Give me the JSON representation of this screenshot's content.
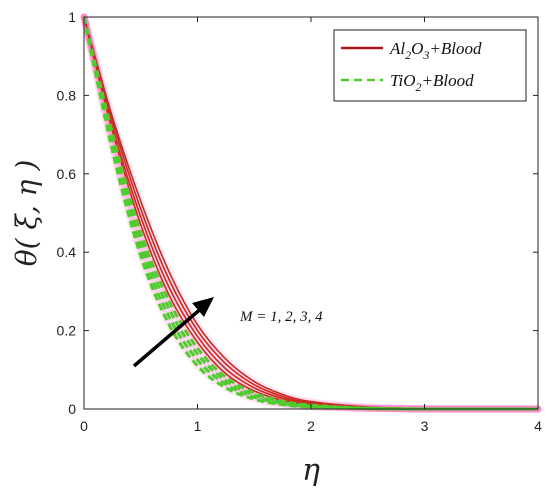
{
  "chart_data": {
    "type": "line",
    "xlabel": "η",
    "ylabel": "θ( ξ, η )",
    "xlim": [
      0,
      4
    ],
    "ylim": [
      0,
      1
    ],
    "xticks": [
      "0",
      "1",
      "2",
      "3",
      "4"
    ],
    "yticks": [
      "0",
      "0.2",
      "0.4",
      "0.6",
      "0.8",
      "1"
    ],
    "grid": false,
    "legend_position": "top-right",
    "legend": [
      {
        "base": "Al",
        "sub1": "2",
        "mid": "O",
        "sub2": "3",
        "tail": "+Blood"
      },
      {
        "base": "TiO",
        "sub1": "2",
        "mid": "",
        "sub2": "",
        "tail": "+Blood"
      }
    ],
    "annotation": "M = 1, 2, 3, 4",
    "colors": {
      "al2o3": "#cc2a1e",
      "al2o3_legend": "#a4161a",
      "tio2": "#4ecb2e",
      "glow": "#ff33aa"
    },
    "series": [
      {
        "fluid": "Al2O3+Blood",
        "M": 1,
        "x": [
          0,
          0.25,
          0.5,
          0.75,
          1,
          1.25,
          1.5,
          1.75,
          2,
          2.5,
          3,
          3.5,
          4
        ],
        "y": [
          1,
          0.71,
          0.47,
          0.29,
          0.17,
          0.09,
          0.046,
          0.022,
          0.01,
          0.002,
          0,
          0,
          0
        ]
      },
      {
        "fluid": "Al2O3+Blood",
        "M": 2,
        "x": [
          0,
          0.25,
          0.5,
          0.75,
          1,
          1.25,
          1.5,
          1.75,
          2,
          2.5,
          3,
          3.5,
          4
        ],
        "y": [
          1,
          0.72,
          0.49,
          0.31,
          0.185,
          0.102,
          0.054,
          0.027,
          0.013,
          0.003,
          0,
          0,
          0
        ]
      },
      {
        "fluid": "Al2O3+Blood",
        "M": 3,
        "x": [
          0,
          0.25,
          0.5,
          0.75,
          1,
          1.25,
          1.5,
          1.75,
          2,
          2.5,
          3,
          3.5,
          4
        ],
        "y": [
          1,
          0.735,
          0.51,
          0.33,
          0.2,
          0.115,
          0.062,
          0.032,
          0.016,
          0.004,
          0.001,
          0,
          0
        ]
      },
      {
        "fluid": "Al2O3+Blood",
        "M": 4,
        "x": [
          0,
          0.25,
          0.5,
          0.75,
          1,
          1.25,
          1.5,
          1.75,
          2,
          2.5,
          3,
          3.5,
          4
        ],
        "y": [
          1,
          0.745,
          0.53,
          0.35,
          0.215,
          0.127,
          0.07,
          0.037,
          0.019,
          0.005,
          0.001,
          0,
          0
        ]
      },
      {
        "fluid": "TiO2+Blood",
        "M": 1,
        "x": [
          0,
          0.25,
          0.5,
          0.75,
          1,
          1.25,
          1.5,
          1.75,
          2,
          2.5,
          3,
          3.5,
          4
        ],
        "y": [
          1,
          0.66,
          0.39,
          0.215,
          0.11,
          0.054,
          0.025,
          0.011,
          0.005,
          0.001,
          0,
          0,
          0
        ]
      },
      {
        "fluid": "TiO2+Blood",
        "M": 2,
        "x": [
          0,
          0.25,
          0.5,
          0.75,
          1,
          1.25,
          1.5,
          1.75,
          2,
          2.5,
          3,
          3.5,
          4
        ],
        "y": [
          1,
          0.675,
          0.41,
          0.235,
          0.125,
          0.063,
          0.03,
          0.014,
          0.006,
          0.001,
          0,
          0,
          0
        ]
      },
      {
        "fluid": "TiO2+Blood",
        "M": 3,
        "x": [
          0,
          0.25,
          0.5,
          0.75,
          1,
          1.25,
          1.5,
          1.75,
          2,
          2.5,
          3,
          3.5,
          4
        ],
        "y": [
          1,
          0.69,
          0.43,
          0.255,
          0.14,
          0.072,
          0.035,
          0.017,
          0.008,
          0.002,
          0,
          0,
          0
        ]
      },
      {
        "fluid": "TiO2+Blood",
        "M": 4,
        "x": [
          0,
          0.25,
          0.5,
          0.75,
          1,
          1.25,
          1.5,
          1.75,
          2,
          2.5,
          3,
          3.5,
          4
        ],
        "y": [
          1,
          0.705,
          0.45,
          0.275,
          0.155,
          0.081,
          0.041,
          0.02,
          0.01,
          0.002,
          0,
          0,
          0
        ]
      }
    ]
  }
}
